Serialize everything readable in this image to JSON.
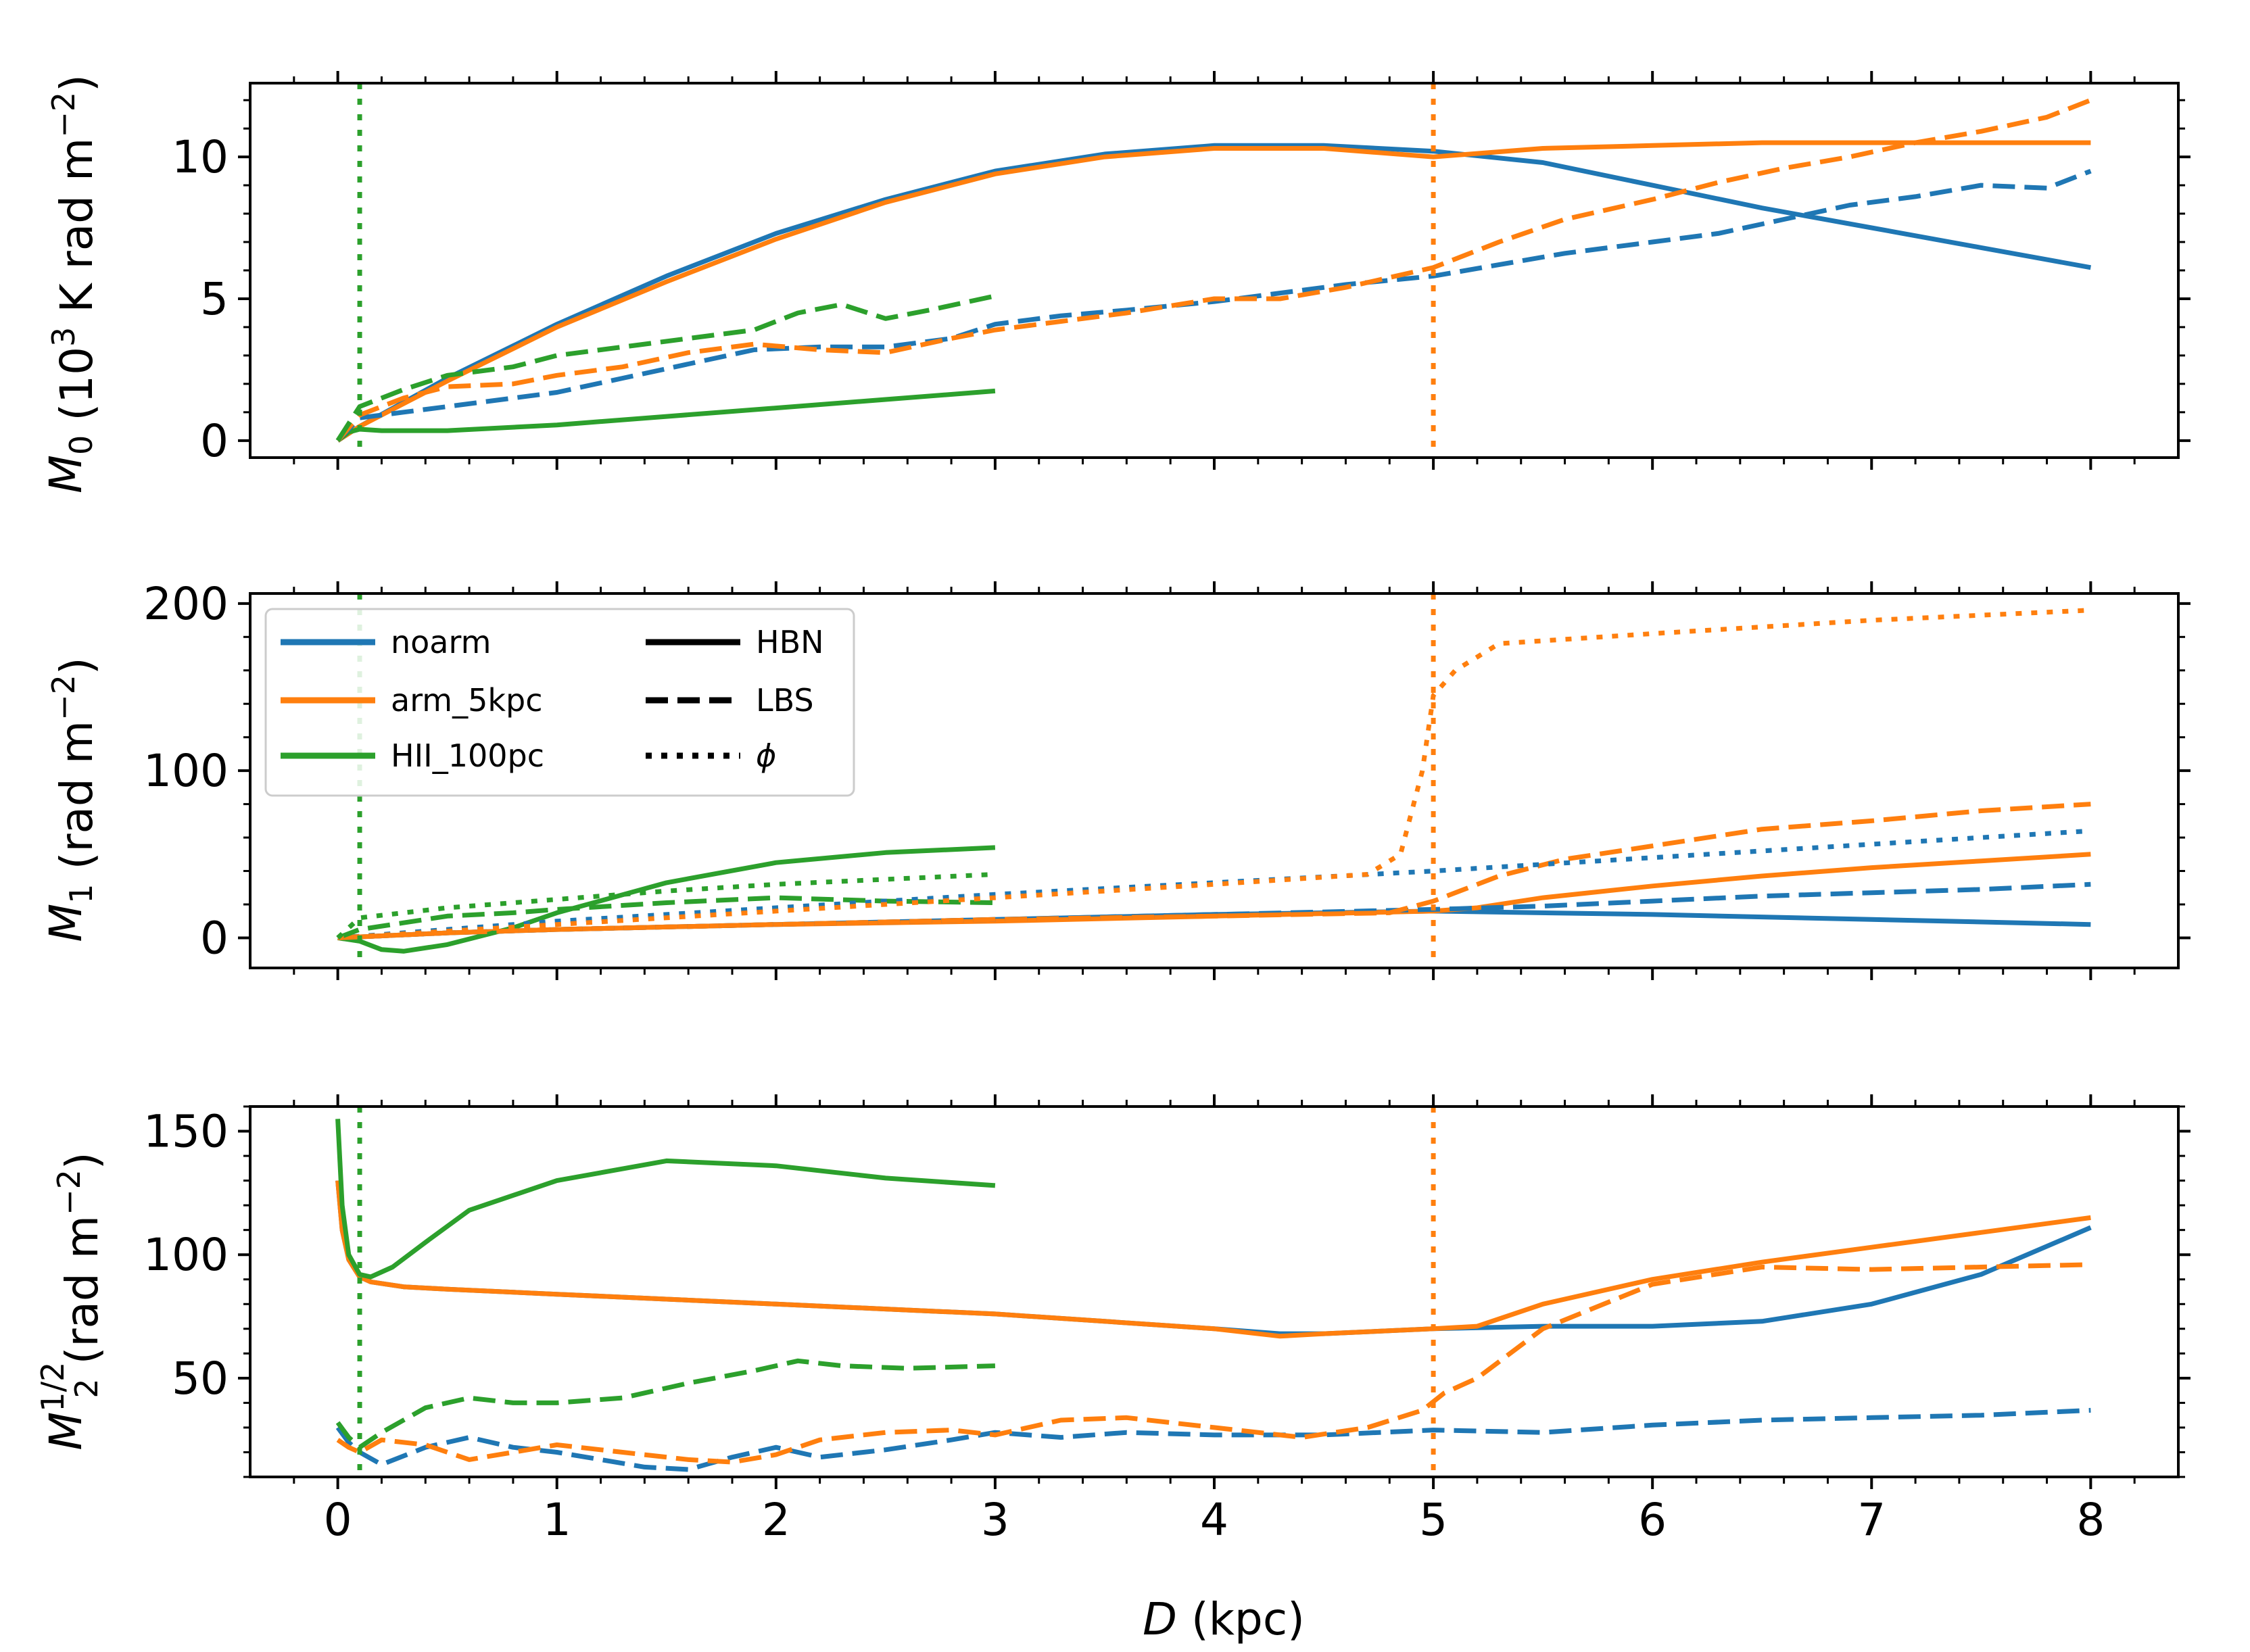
{
  "figure": {
    "xlabel": "D (kpc)",
    "xlabel_var": "D",
    "xlabel_unit": " (kpc)",
    "xlim": [
      -0.4,
      8.4
    ],
    "xticks": [
      0,
      1,
      2,
      3,
      4,
      5,
      6,
      7,
      8
    ],
    "colors": {
      "noarm": "#1f77b4",
      "arm_5kpc": "#ff7f0e",
      "HII_100pc": "#2ca02c"
    }
  },
  "legend": {
    "placement": "top-left of middle panel",
    "models": [
      {
        "label": "noarm",
        "color": "#1f77b4"
      },
      {
        "label": "arm_5kpc",
        "color": "#ff7f0e"
      },
      {
        "label": "HII_100pc",
        "color": "#2ca02c"
      }
    ],
    "styles": [
      {
        "label": "HBN",
        "dash": "solid"
      },
      {
        "label": "LBS",
        "dash": "dashed"
      },
      {
        "label": "ϕ",
        "dash": "dotted"
      }
    ]
  },
  "chart_data": [
    {
      "type": "line",
      "panel": "top",
      "ylabel": "M0 (10^3 K rad m^-2)",
      "ylabel_parts": {
        "sym": "M",
        "sub": "0",
        "pre": " (10",
        "sup": "3",
        "mid": " K rad m",
        "sup2": "−2",
        "post": ")"
      },
      "ylim": [
        -0.6,
        12.6
      ],
      "yticks": [
        0,
        5,
        10
      ],
      "vlines": [
        {
          "x": 0.1,
          "color": "#2ca02c"
        },
        {
          "x": 5.0,
          "color": "#ff7f0e"
        }
      ],
      "series": [
        {
          "name": "noarm HBN",
          "color": "#1f77b4",
          "dash": "solid",
          "x": [
            0,
            0.1,
            0.5,
            1,
            1.5,
            2,
            2.5,
            3,
            3.5,
            4,
            4.5,
            5,
            5.5,
            6,
            6.5,
            7,
            7.5,
            8
          ],
          "y": [
            0,
            0.5,
            2.2,
            4.1,
            5.8,
            7.3,
            8.5,
            9.5,
            10.1,
            10.4,
            10.4,
            10.2,
            9.8,
            9.0,
            8.2,
            7.5,
            6.8,
            6.1
          ]
        },
        {
          "name": "arm_5kpc HBN",
          "color": "#ff7f0e",
          "dash": "solid",
          "x": [
            0,
            0.1,
            0.5,
            1,
            1.5,
            2,
            2.5,
            3,
            3.5,
            4,
            4.5,
            5,
            5.5,
            6,
            6.5,
            7,
            7.5,
            8
          ],
          "y": [
            0,
            0.5,
            2.1,
            4.0,
            5.6,
            7.1,
            8.4,
            9.4,
            10.0,
            10.3,
            10.3,
            10.0,
            10.3,
            10.4,
            10.5,
            10.5,
            10.5,
            10.5
          ]
        },
        {
          "name": "HII_100pc HBN",
          "color": "#2ca02c",
          "dash": "solid",
          "x": [
            0,
            0.05,
            0.1,
            0.2,
            0.5,
            1,
            1.5,
            2,
            2.5,
            3
          ],
          "y": [
            0,
            0.3,
            0.4,
            0.35,
            0.35,
            0.55,
            0.85,
            1.15,
            1.45,
            1.75
          ]
        },
        {
          "name": "noarm LBS",
          "color": "#1f77b4",
          "dash": "dashed",
          "x": [
            0,
            0.1,
            0.3,
            0.5,
            0.8,
            1,
            1.3,
            1.6,
            1.9,
            2.2,
            2.5,
            2.8,
            3,
            3.3,
            3.6,
            4,
            4.3,
            4.6,
            5,
            5.3,
            5.6,
            6,
            6.3,
            6.6,
            6.9,
            7.2,
            7.5,
            7.8,
            8
          ],
          "y": [
            0,
            0.8,
            1.0,
            1.2,
            1.5,
            1.7,
            2.2,
            2.7,
            3.2,
            3.3,
            3.3,
            3.6,
            4.1,
            4.4,
            4.6,
            4.9,
            5.2,
            5.5,
            5.8,
            6.2,
            6.6,
            7.0,
            7.3,
            7.8,
            8.3,
            8.6,
            9.0,
            8.9,
            9.5
          ]
        },
        {
          "name": "arm_5kpc LBS",
          "color": "#ff7f0e",
          "dash": "dashed",
          "x": [
            0,
            0.1,
            0.3,
            0.5,
            0.8,
            1,
            1.3,
            1.6,
            1.9,
            2.2,
            2.5,
            2.8,
            3,
            3.3,
            3.6,
            4,
            4.3,
            4.6,
            5,
            5.3,
            5.6,
            6,
            6.3,
            6.6,
            6.9,
            7.2,
            7.5,
            7.8,
            8
          ],
          "y": [
            0,
            0.9,
            1.5,
            1.9,
            2.0,
            2.3,
            2.6,
            3.1,
            3.4,
            3.2,
            3.1,
            3.6,
            3.9,
            4.2,
            4.5,
            5.0,
            5.0,
            5.4,
            6.1,
            7.0,
            7.8,
            8.5,
            9.1,
            9.6,
            10.0,
            10.5,
            10.9,
            11.4,
            12.0
          ]
        },
        {
          "name": "HII_100pc LBS",
          "color": "#2ca02c",
          "dash": "dashed",
          "x": [
            0,
            0.1,
            0.3,
            0.5,
            0.8,
            1,
            1.3,
            1.6,
            1.9,
            2.1,
            2.3,
            2.5,
            2.7,
            3
          ],
          "y": [
            0,
            1.2,
            1.8,
            2.3,
            2.6,
            3.0,
            3.3,
            3.6,
            3.9,
            4.5,
            4.8,
            4.3,
            4.6,
            5.1
          ]
        }
      ]
    },
    {
      "type": "line",
      "panel": "middle",
      "ylabel": "M1 (rad m^-2)",
      "ylabel_parts": {
        "sym": "M",
        "sub": "1",
        "pre": " (rad m",
        "sup": "−2",
        "post": ")"
      },
      "ylim": [
        -18,
        206
      ],
      "yticks": [
        0,
        100,
        200
      ],
      "vlines": [
        {
          "x": 0.1,
          "color": "#2ca02c"
        },
        {
          "x": 5.0,
          "color": "#ff7f0e"
        }
      ],
      "series": [
        {
          "name": "noarm HBN",
          "color": "#1f77b4",
          "dash": "solid",
          "x": [
            0,
            0.5,
            1,
            2,
            3,
            4,
            5,
            6,
            7,
            8
          ],
          "y": [
            0,
            3,
            5,
            8,
            11,
            14,
            16,
            14,
            11,
            8
          ]
        },
        {
          "name": "arm_5kpc HBN",
          "color": "#ff7f0e",
          "dash": "solid",
          "x": [
            0,
            0.5,
            1,
            2,
            3,
            4,
            5,
            5.2,
            5.5,
            6,
            6.5,
            7,
            7.5,
            8
          ],
          "y": [
            0,
            3,
            5,
            8,
            10,
            13,
            16,
            18,
            24,
            31,
            37,
            42,
            46,
            50
          ]
        },
        {
          "name": "HII_100pc HBN",
          "color": "#2ca02c",
          "dash": "solid",
          "x": [
            0,
            0.1,
            0.2,
            0.3,
            0.5,
            0.8,
            1,
            1.5,
            2,
            2.5,
            3
          ],
          "y": [
            0,
            -2,
            -7,
            -8,
            -4,
            6,
            15,
            33,
            45,
            51,
            54
          ]
        },
        {
          "name": "noarm LBS",
          "color": "#1f77b4",
          "dash": "dashed",
          "x": [
            0,
            0.5,
            1,
            2,
            3,
            4,
            5,
            5.5,
            6,
            6.5,
            7,
            7.5,
            8
          ],
          "y": [
            0,
            3,
            5,
            8,
            11,
            14,
            17,
            19,
            22,
            25,
            27,
            29,
            32
          ]
        },
        {
          "name": "arm_5kpc LBS",
          "color": "#ff7f0e",
          "dash": "dashed",
          "x": [
            0,
            0.5,
            1,
            2,
            3,
            4,
            4.8,
            5,
            5.3,
            5.6,
            6,
            6.5,
            7,
            7.5,
            8
          ],
          "y": [
            0,
            3,
            5,
            8,
            11,
            13,
            15,
            22,
            37,
            47,
            55,
            65,
            70,
            76,
            80
          ]
        },
        {
          "name": "HII_100pc LBS",
          "color": "#2ca02c",
          "dash": "dashed",
          "x": [
            0,
            0.1,
            0.3,
            0.5,
            0.8,
            1,
            1.5,
            2,
            2.5,
            3
          ],
          "y": [
            0,
            5,
            9,
            13,
            15,
            17,
            21,
            24,
            22,
            21
          ]
        },
        {
          "name": "noarm φ",
          "color": "#1f77b4",
          "dash": "dotted",
          "x": [
            0,
            0.5,
            1,
            2,
            3,
            4,
            5,
            6,
            7,
            8
          ],
          "y": [
            0,
            5,
            10,
            18,
            26,
            33,
            40,
            48,
            56,
            64
          ]
        },
        {
          "name": "arm_5kpc φ",
          "color": "#ff7f0e",
          "dash": "dotted",
          "x": [
            0,
            1,
            2,
            3,
            4,
            4.7,
            4.85,
            4.95,
            5.0,
            5.1,
            5.3,
            6,
            7,
            8
          ],
          "y": [
            0,
            8,
            16,
            24,
            32,
            38,
            50,
            100,
            145,
            160,
            176,
            182,
            190,
            196
          ]
        },
        {
          "name": "HII_100pc φ",
          "color": "#2ca02c",
          "dash": "dotted",
          "x": [
            0,
            0.1,
            0.3,
            0.5,
            1,
            1.5,
            2,
            2.5,
            3
          ],
          "y": [
            0,
            12,
            15,
            18,
            23,
            28,
            32,
            35,
            38
          ]
        }
      ]
    },
    {
      "type": "line",
      "panel": "bottom",
      "ylabel": "M2^(1/2) (rad m^-2)",
      "ylabel_parts": {
        "sym": "M",
        "sub": "2",
        "sup1": "1/2",
        "pre": " (rad m",
        "sup": "−2",
        "post": ")"
      },
      "ylim": [
        10,
        160
      ],
      "yticks": [
        50,
        100,
        150
      ],
      "vlines": [
        {
          "x": 0.1,
          "color": "#2ca02c"
        },
        {
          "x": 5.0,
          "color": "#ff7f0e"
        }
      ],
      "series": [
        {
          "name": "noarm HBN",
          "color": "#1f77b4",
          "dash": "solid",
          "x": [
            0,
            0.02,
            0.05,
            0.1,
            0.15,
            0.3,
            0.5,
            1,
            1.5,
            2,
            2.5,
            3,
            3.5,
            4,
            4.3,
            4.5,
            5,
            5.5,
            6,
            6.5,
            7,
            7.5,
            8
          ],
          "y": [
            130,
            110,
            98,
            91,
            89,
            87,
            86,
            84,
            82,
            80,
            78,
            76,
            73,
            70,
            68,
            68,
            70,
            71,
            71,
            73,
            80,
            92,
            111
          ]
        },
        {
          "name": "arm_5kpc HBN",
          "color": "#ff7f0e",
          "dash": "solid",
          "x": [
            0,
            0.02,
            0.05,
            0.1,
            0.15,
            0.3,
            0.5,
            1,
            1.5,
            2,
            2.5,
            3,
            3.5,
            4,
            4.3,
            4.5,
            5,
            5.2,
            5.5,
            6,
            6.5,
            7,
            7.5,
            8
          ],
          "y": [
            130,
            110,
            98,
            91,
            89,
            87,
            86,
            84,
            82,
            80,
            78,
            76,
            73,
            70,
            67,
            68,
            70,
            71,
            80,
            90,
            97,
            103,
            109,
            115
          ]
        },
        {
          "name": "HII_100pc HBN",
          "color": "#2ca02c",
          "dash": "solid",
          "x": [
            0,
            0.02,
            0.05,
            0.1,
            0.15,
            0.25,
            0.4,
            0.6,
            1,
            1.5,
            2,
            2.5,
            3
          ],
          "y": [
            155,
            120,
            100,
            92,
            91,
            95,
            105,
            118,
            130,
            138,
            136,
            131,
            128
          ]
        },
        {
          "name": "noarm LBS",
          "color": "#1f77b4",
          "dash": "dashed",
          "x": [
            0,
            0.05,
            0.1,
            0.2,
            0.4,
            0.6,
            0.8,
            1,
            1.2,
            1.4,
            1.6,
            1.8,
            2,
            2.2,
            2.5,
            2.8,
            3,
            3.3,
            3.6,
            4,
            4.5,
            5,
            5.5,
            6,
            6.5,
            7,
            7.5,
            8
          ],
          "y": [
            30,
            24,
            20,
            15,
            22,
            26,
            22,
            20,
            17,
            14,
            13,
            18,
            22,
            18,
            21,
            25,
            28,
            26,
            28,
            27,
            27,
            29,
            28,
            31,
            33,
            34,
            35,
            37
          ]
        },
        {
          "name": "arm_5kpc LBS",
          "color": "#ff7f0e",
          "dash": "dashed",
          "x": [
            0,
            0.05,
            0.1,
            0.2,
            0.4,
            0.6,
            0.8,
            1,
            1.3,
            1.6,
            1.8,
            2,
            2.2,
            2.5,
            2.8,
            3,
            3.3,
            3.6,
            4,
            4.4,
            4.7,
            4.95,
            5.05,
            5.2,
            5.5,
            6,
            6.5,
            7,
            7.5,
            8
          ],
          "y": [
            25,
            22,
            20,
            25,
            23,
            17,
            20,
            23,
            20,
            17,
            16,
            19,
            25,
            28,
            29,
            27,
            33,
            34,
            30,
            26,
            30,
            37,
            44,
            50,
            70,
            88,
            95,
            94,
            95,
            96
          ]
        },
        {
          "name": "HII_100pc LBS",
          "color": "#2ca02c",
          "dash": "dashed",
          "x": [
            0,
            0.05,
            0.1,
            0.2,
            0.4,
            0.6,
            0.8,
            1,
            1.3,
            1.6,
            1.9,
            2.1,
            2.3,
            2.6,
            3
          ],
          "y": [
            32,
            26,
            22,
            28,
            38,
            42,
            40,
            40,
            42,
            48,
            53,
            57,
            55,
            54,
            55
          ]
        }
      ]
    }
  ]
}
